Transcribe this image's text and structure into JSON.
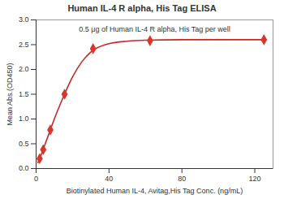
{
  "chart_data": {
    "type": "line",
    "title": "Human IL-4 R alpha, His Tag ELISA",
    "annotations": [
      "0.5 μg of Human IL-4 R alpha, His Tag per well"
    ],
    "x_label": "Biotinylated Human IL-4, Avitag,His Tag Conc. (ng/mL)",
    "y_label": "Mean Abs.(OD450)",
    "xlim": [
      0,
      130
    ],
    "xticks": [
      0,
      40,
      80,
      120
    ],
    "ylim": [
      0,
      3
    ],
    "yticks": [
      {
        "value": 0,
        "label": "0.0"
      },
      0.5,
      {
        "value": 1,
        "label": "1.0"
      },
      1.5,
      {
        "value": 2,
        "label": "2.0"
      },
      2.5,
      {
        "value": 3,
        "label": "3.0"
      }
    ],
    "grid": false,
    "series": [
      {
        "type": "line",
        "color": "#c62828",
        "line_style": "solid",
        "x": [
          1,
          3,
          5,
          8,
          10,
          15,
          20,
          25,
          30,
          40,
          50,
          60,
          80,
          100,
          125
        ],
        "values": [
          0.12,
          0.3,
          0.5,
          0.8,
          1.0,
          1.45,
          1.85,
          2.15,
          2.35,
          2.52,
          2.57,
          2.59,
          2.6,
          2.6,
          2.6
        ]
      },
      {
        "type": "scatter",
        "color": "#d7372c",
        "marker": "diamond",
        "x": [
          1.95,
          3.9,
          7.8,
          15.6,
          31.25,
          62.5,
          125
        ],
        "values": [
          0.2,
          0.38,
          0.78,
          1.5,
          2.42,
          2.58,
          2.6
        ]
      }
    ]
  }
}
